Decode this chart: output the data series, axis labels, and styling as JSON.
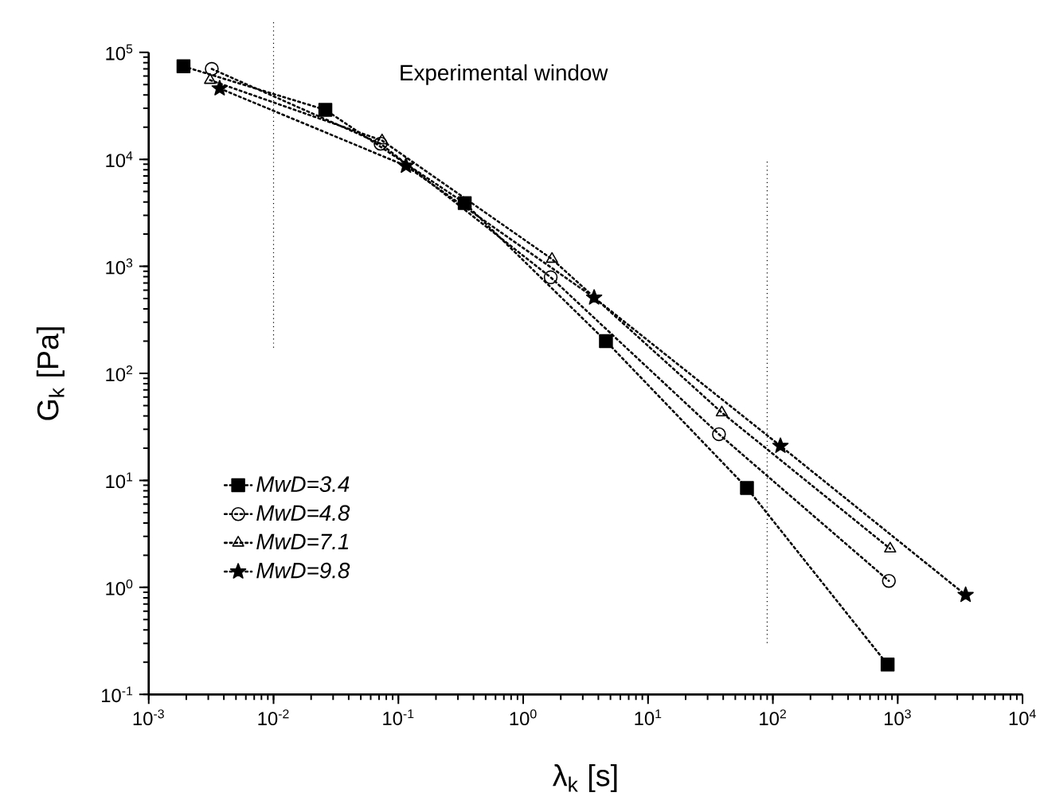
{
  "chart_data": {
    "type": "line",
    "xlabel": "λ$_{k}$ [s]",
    "ylabel": "G$_{k}$ [Pa]",
    "log": "xy",
    "grid": false,
    "legend": "left",
    "line_style": "dotted",
    "xlim": [
      0.001,
      10000
    ],
    "ylim": [
      0.1,
      100000
    ],
    "xticks": [
      {
        "value": 0.001,
        "label": "10$^{-3}$"
      },
      {
        "value": 0.01,
        "label": "10$^{-2}$"
      },
      {
        "value": 0.1,
        "label": "10$^{-1}$"
      },
      {
        "value": 1,
        "label": "10$^{0}$"
      },
      {
        "value": 10,
        "label": "10$^{1}$"
      },
      {
        "value": 100,
        "label": "10$^{2}$"
      },
      {
        "value": 1000,
        "label": "10$^{3}$"
      },
      {
        "value": 10000,
        "label": "10$^{4}$"
      }
    ],
    "yticks": [
      {
        "value": 0.1,
        "label": "10$^{-1}$"
      },
      {
        "value": 1,
        "label": "10$^{0}$"
      },
      {
        "value": 10,
        "label": "10$^{1}$"
      },
      {
        "value": 100,
        "label": "10$^{2}$"
      },
      {
        "value": 1000,
        "label": "10$^{3}$"
      },
      {
        "value": 10000,
        "label": "10$^{4}$"
      },
      {
        "value": 100000,
        "label": "10$^{5}$"
      }
    ],
    "series": [
      {
        "name": "*MwD=3.4*",
        "color": "#000000",
        "marker": "square",
        "x": [
          0.0019,
          0.026,
          0.34,
          4.6,
          62,
          830
        ],
        "values": [
          74000,
          29000,
          3900,
          200,
          8.5,
          0.19
        ]
      },
      {
        "name": "*MwD=4.8*",
        "color": "#000000",
        "marker": "circle",
        "x": [
          0.0032,
          0.072,
          1.66,
          37,
          850
        ],
        "values": [
          70000,
          14000,
          790,
          27,
          1.15
        ]
      },
      {
        "name": "*MwD=7.1*",
        "color": "#000000",
        "marker": "triangle",
        "x": [
          0.0031,
          0.074,
          1.7,
          39,
          870
        ],
        "values": [
          55000,
          15000,
          1170,
          43,
          2.3
        ]
      },
      {
        "name": "*MwD=9.8*",
        "color": "#000000",
        "marker": "star",
        "x": [
          0.0037,
          0.115,
          3.7,
          115,
          3500
        ],
        "values": [
          46000,
          8700,
          510,
          21,
          0.85
        ]
      }
    ],
    "ref_lines": [
      {
        "axis": "x",
        "value": 0.01,
        "line_style": "dotted",
        "color": "#000000"
      },
      {
        "axis": "x",
        "value": 90,
        "line_style": "dotted",
        "color": "#000000"
      }
    ],
    "annotations": [
      "Experimental window"
    ]
  }
}
